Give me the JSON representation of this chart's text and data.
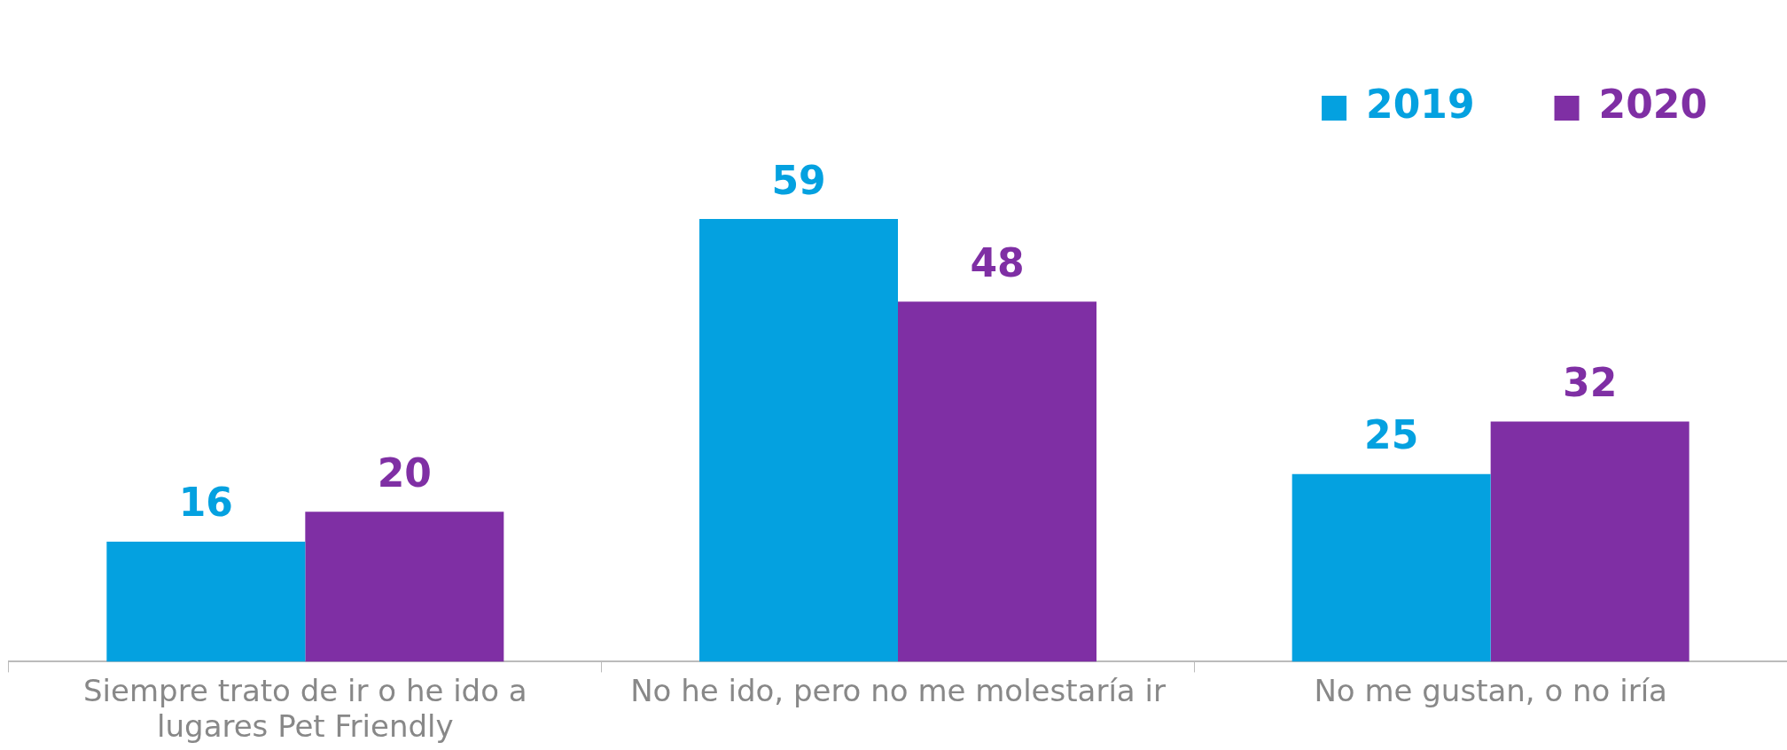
{
  "chart_data": {
    "type": "bar",
    "categories": [
      "Siempre trato de ir o he ido a lugares Pet Friendly",
      "No he ido, pero no me molestaría ir",
      "No me gustan, o no iría"
    ],
    "series": [
      {
        "name": "2019",
        "color": "#04a1e0",
        "values": [
          16,
          59,
          25
        ]
      },
      {
        "name": "2020",
        "color": "#7f2fa4",
        "values": [
          20,
          48,
          32
        ]
      }
    ],
    "data_labels": true,
    "legend": "top right",
    "grid": false
  }
}
